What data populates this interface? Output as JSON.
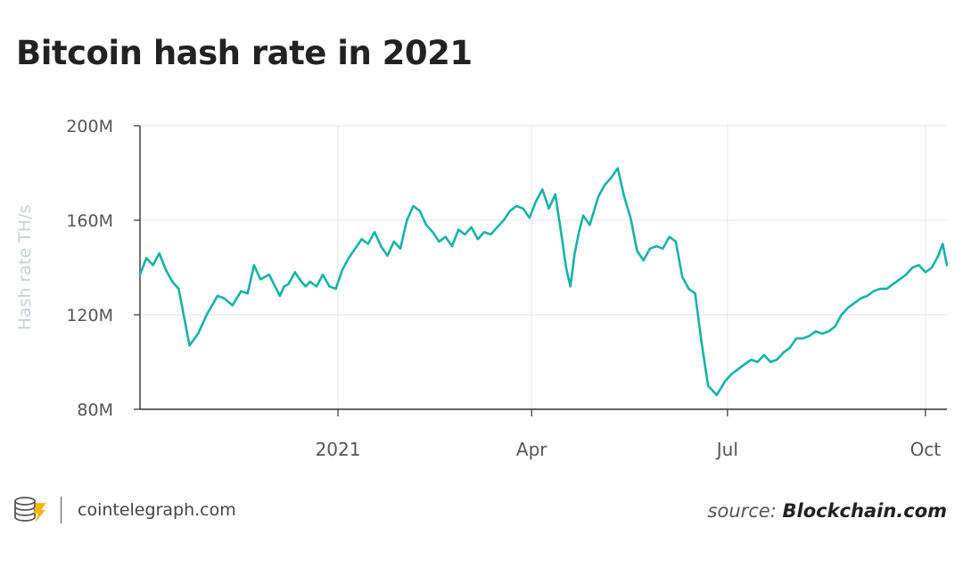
{
  "header": {
    "title": "Bitcoin hash rate in 2021"
  },
  "footer": {
    "site": "cointelegraph.com",
    "source_prefix": "source:",
    "source_name": "Blockchain.com"
  },
  "colors": {
    "line": "#13b3a3",
    "grid": "#e6e6e6",
    "axis": "#333333",
    "text": "#222222"
  },
  "chart_data": {
    "type": "line",
    "title": "Bitcoin hash rate in 2021",
    "xlabel": "",
    "ylabel": "Hash rate TH/s",
    "ylim": [
      80,
      200
    ],
    "y_unit": "M",
    "yticks": [
      {
        "value": 80,
        "label": "80M"
      },
      {
        "value": 120,
        "label": "120M"
      },
      {
        "value": 160,
        "label": "160M"
      },
      {
        "value": 200,
        "label": "200M"
      }
    ],
    "xlim": [
      "2020-10-01",
      "2021-10-11"
    ],
    "xticks": [
      {
        "date": "2021-01-01",
        "label": "2021"
      },
      {
        "date": "2021-04-01",
        "label": "Apr"
      },
      {
        "date": "2021-07-01",
        "label": "Jul"
      },
      {
        "date": "2021-10-01",
        "label": "Oct"
      }
    ],
    "grid": true,
    "series": [
      {
        "x": [
          "2020-10-01",
          "2020-10-04",
          "2020-10-07",
          "2020-10-10",
          "2020-10-13",
          "2020-10-16",
          "2020-10-19",
          "2020-10-24",
          "2020-10-28",
          "2020-11-01",
          "2020-11-06",
          "2020-11-09",
          "2020-11-13",
          "2020-11-17",
          "2020-11-20",
          "2020-11-23",
          "2020-11-26",
          "2020-11-30",
          "2020-12-05",
          "2020-12-07",
          "2020-12-09",
          "2020-12-12",
          "2020-12-15",
          "2020-12-17",
          "2020-12-19",
          "2020-12-22",
          "2020-12-25",
          "2020-12-28",
          "2020-12-31",
          "2021-01-03",
          "2021-01-06",
          "2021-01-09",
          "2021-01-12",
          "2021-01-15",
          "2021-01-18",
          "2021-01-21",
          "2021-01-24",
          "2021-01-27",
          "2021-01-30",
          "2021-02-02",
          "2021-02-05",
          "2021-02-08",
          "2021-02-11",
          "2021-02-14",
          "2021-02-17",
          "2021-02-20",
          "2021-02-23",
          "2021-02-26",
          "2021-03-01",
          "2021-03-04",
          "2021-03-07",
          "2021-03-10",
          "2021-03-13",
          "2021-03-16",
          "2021-03-19",
          "2021-03-22",
          "2021-03-25",
          "2021-03-28",
          "2021-03-31",
          "2021-04-03",
          "2021-04-06",
          "2021-04-09",
          "2021-04-12",
          "2021-04-15",
          "2021-04-17",
          "2021-04-19",
          "2021-04-21",
          "2021-04-23",
          "2021-04-25",
          "2021-04-28",
          "2021-05-02",
          "2021-05-05",
          "2021-05-08",
          "2021-05-11",
          "2021-05-14",
          "2021-05-17",
          "2021-05-20",
          "2021-05-23",
          "2021-05-26",
          "2021-05-29",
          "2021-06-01",
          "2021-06-04",
          "2021-06-07",
          "2021-06-10",
          "2021-06-13",
          "2021-06-16",
          "2021-06-19",
          "2021-06-22",
          "2021-06-26",
          "2021-06-30",
          "2021-07-03",
          "2021-07-06",
          "2021-07-09",
          "2021-07-12",
          "2021-07-15",
          "2021-07-18",
          "2021-07-21",
          "2021-07-24",
          "2021-07-27",
          "2021-07-30",
          "2021-08-02",
          "2021-08-05",
          "2021-08-08",
          "2021-08-11",
          "2021-08-14",
          "2021-08-17",
          "2021-08-20",
          "2021-08-23",
          "2021-08-26",
          "2021-08-29",
          "2021-09-01",
          "2021-09-04",
          "2021-09-07",
          "2021-09-10",
          "2021-09-13",
          "2021-09-16",
          "2021-09-19",
          "2021-09-22",
          "2021-09-25",
          "2021-09-28",
          "2021-10-01",
          "2021-10-04",
          "2021-10-07",
          "2021-10-09",
          "2021-10-11"
        ],
        "y": [
          137,
          144,
          141,
          146,
          139,
          134,
          131,
          107,
          112,
          120,
          128,
          127,
          124,
          130,
          129,
          141,
          135,
          137,
          128,
          132,
          133,
          138,
          134,
          132,
          134,
          132,
          137,
          132,
          131,
          139,
          144,
          148,
          152,
          150,
          155,
          149,
          145,
          151,
          148,
          160,
          166,
          164,
          158,
          155,
          151,
          153,
          149,
          156,
          154,
          157,
          152,
          155,
          154,
          157,
          160,
          164,
          166,
          165,
          161,
          168,
          173,
          165,
          171,
          153,
          140,
          132,
          146,
          155,
          162,
          158,
          170,
          175,
          178,
          182,
          170,
          161,
          147,
          143,
          148,
          149,
          148,
          153,
          151,
          136,
          131,
          129,
          108,
          90,
          86,
          92,
          95,
          97,
          99,
          101,
          100,
          103,
          100,
          101,
          104,
          106,
          110,
          110,
          111,
          113,
          112,
          113,
          115,
          120,
          123,
          125,
          127,
          128,
          130,
          131,
          131,
          133,
          135,
          137,
          140,
          141,
          138,
          140,
          145,
          150,
          141
        ]
      }
    ]
  }
}
